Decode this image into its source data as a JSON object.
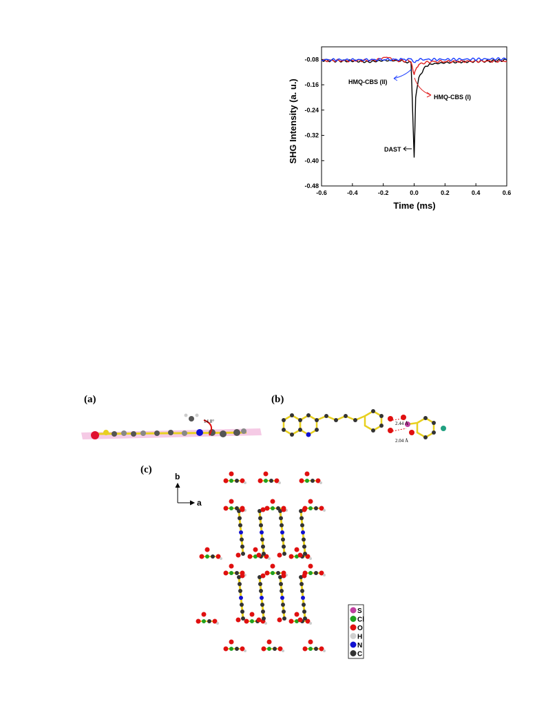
{
  "chart_data": {
    "type": "line",
    "xlabel": "Time (ms)",
    "ylabel": "SHG Intensity (a. u.)",
    "xlim": [
      -0.6,
      0.6
    ],
    "ylim": [
      -0.48,
      -0.04
    ],
    "x_ticks": [
      "-0.6",
      "-0.4",
      "-0.2",
      "0.0",
      "0.2",
      "0.4",
      "0.6"
    ],
    "y_ticks": [
      "-0.08",
      "-0.16",
      "-0.24",
      "-0.32",
      "-0.40",
      "-0.48"
    ],
    "series": [
      {
        "name": "DAST",
        "color": "#000000",
        "points": [
          [
            -0.6,
            -0.082
          ],
          [
            -0.5,
            -0.085
          ],
          [
            -0.4,
            -0.084
          ],
          [
            -0.3,
            -0.088
          ],
          [
            -0.2,
            -0.083
          ],
          [
            -0.1,
            -0.084
          ],
          [
            -0.02,
            -0.09
          ],
          [
            0.0,
            -0.39
          ],
          [
            0.01,
            -0.2
          ],
          [
            0.03,
            -0.14
          ],
          [
            0.06,
            -0.11
          ],
          [
            0.1,
            -0.095
          ],
          [
            0.2,
            -0.09
          ],
          [
            0.3,
            -0.088
          ],
          [
            0.4,
            -0.086
          ],
          [
            0.5,
            -0.085
          ],
          [
            0.6,
            -0.082
          ]
        ]
      },
      {
        "name": "HMQ-CBS (I)",
        "color": "#e02020",
        "points": [
          [
            -0.6,
            -0.083
          ],
          [
            -0.4,
            -0.084
          ],
          [
            -0.25,
            -0.082
          ],
          [
            -0.18,
            -0.072
          ],
          [
            -0.12,
            -0.083
          ],
          [
            -0.02,
            -0.085
          ],
          [
            0.0,
            -0.13
          ],
          [
            0.01,
            -0.11
          ],
          [
            0.03,
            -0.095
          ],
          [
            0.1,
            -0.087
          ],
          [
            0.3,
            -0.086
          ],
          [
            0.6,
            -0.085
          ]
        ]
      },
      {
        "name": "HMQ-CBS (II)",
        "color": "#1a3cff",
        "points": [
          [
            -0.6,
            -0.081
          ],
          [
            -0.3,
            -0.081
          ],
          [
            -0.1,
            -0.08
          ],
          [
            -0.02,
            -0.079
          ],
          [
            0.0,
            -0.09
          ],
          [
            0.02,
            -0.08
          ],
          [
            0.2,
            -0.08
          ],
          [
            0.6,
            -0.078
          ]
        ]
      }
    ],
    "annotations": [
      "HMQ-CBS (II)",
      "HMQ-CBS (I)",
      "DAST"
    ]
  },
  "figure2": {
    "label_a": "(a)",
    "label_b": "(b)",
    "label_c": "(c)",
    "angle": "14.8°",
    "dist1": "2.44 Å",
    "dist2": "2.04 Å",
    "axis_b": "b",
    "axis_a": "a",
    "legend": [
      {
        "symbol": "S",
        "color": "#c040a0"
      },
      {
        "symbol": "Cl",
        "color": "#20a020"
      },
      {
        "symbol": "O",
        "color": "#e01010"
      },
      {
        "symbol": "H",
        "color": "#d0d0d0"
      },
      {
        "symbol": "N",
        "color": "#1010d0"
      },
      {
        "symbol": "C",
        "color": "#333333"
      }
    ]
  }
}
